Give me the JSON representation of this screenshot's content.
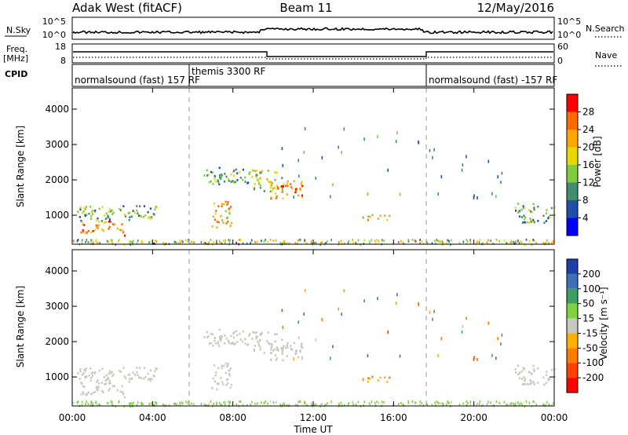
{
  "header": {
    "radar": "Adak West (fitACF)",
    "beam": "Beam 11",
    "date": "12/May/2016"
  },
  "strips": {
    "nsky_label": "N.Sky",
    "nsky_ticks": [
      "10^5",
      "10^0"
    ],
    "nsearch_label": "N.Search",
    "nsearch_ticks": [
      "10^5",
      "10^0"
    ],
    "freq_label_1": "Freq.",
    "freq_label_2": "[MHz]",
    "freq_ticks": [
      "18",
      "8"
    ],
    "nave_label": "Nave",
    "nave_ticks": [
      "60",
      "0"
    ],
    "cpid_label": "CPID",
    "cpid_segments": [
      {
        "label": "normalsound (fast)  157 RF",
        "start": 0,
        "end": 6
      },
      {
        "label": "themis 3300 RF",
        "start": 6,
        "end": 18
      },
      {
        "label": "normalsound (fast)  -157 RF",
        "start": 18,
        "end": 24
      }
    ]
  },
  "chart_data": [
    {
      "type": "heatmap",
      "parameter": "power",
      "ylabel": "Slant Range [km]",
      "ylim": [
        180,
        4600
      ],
      "yticks": [
        1000,
        2000,
        3000,
        4000
      ],
      "colorbar_label": "Power [dB]",
      "colorbar_ticks": [
        "28",
        "24",
        "20",
        "16",
        "12",
        "8",
        "4"
      ],
      "colorbar_colors": [
        "#ff0000",
        "#ff6a00",
        "#ffa500",
        "#e6d800",
        "#7fcc3f",
        "#3f8f6f",
        "#1f4fa8",
        "#0000ff"
      ],
      "regions": [
        {
          "t": [
            0.2,
            4.2
          ],
          "r": [
            850,
            1300
          ],
          "value": 10
        },
        {
          "t": [
            0.4,
            2.6
          ],
          "r": [
            450,
            850
          ],
          "value": 22
        },
        {
          "t": [
            6.9,
            7.9
          ],
          "r": [
            650,
            1450
          ],
          "value": 20
        },
        {
          "t": [
            6.5,
            9.0
          ],
          "r": [
            1900,
            2400
          ],
          "value": 10
        },
        {
          "t": [
            8.8,
            10.5
          ],
          "r": [
            1700,
            2300
          ],
          "value": 14
        },
        {
          "t": [
            9.8,
            11.5
          ],
          "r": [
            1450,
            2000
          ],
          "value": 22
        },
        {
          "t": [
            14.3,
            15.8
          ],
          "r": [
            880,
            1060
          ],
          "value": 16
        },
        {
          "t": [
            22.0,
            24.0
          ],
          "r": [
            800,
            1350
          ],
          "value": 10
        }
      ]
    },
    {
      "type": "heatmap",
      "parameter": "velocity",
      "ylabel": "Slant Range [km]",
      "ylim": [
        180,
        4600
      ],
      "yticks": [
        1000,
        2000,
        3000,
        4000
      ],
      "colorbar_label": "Velocity [m s⁻¹]",
      "colorbar_ticks": [
        "200",
        "100",
        "50",
        "15",
        "-15",
        "-50",
        "-100",
        "-200"
      ],
      "colorbar_colors": [
        "#1f3fa8",
        "#3f6fb8",
        "#3f9f5f",
        "#7fd23f",
        "#c8c8c0",
        "#ffb000",
        "#ff7a00",
        "#ff4000",
        "#ff0000"
      ],
      "regions": [
        {
          "t": [
            0.2,
            4.2
          ],
          "r": [
            850,
            1300
          ],
          "value": 0
        },
        {
          "t": [
            0.4,
            2.6
          ],
          "r": [
            450,
            850
          ],
          "value": 0
        },
        {
          "t": [
            6.9,
            7.9
          ],
          "r": [
            650,
            1450
          ],
          "value": 0
        },
        {
          "t": [
            6.5,
            9.0
          ],
          "r": [
            1900,
            2400
          ],
          "value": 0
        },
        {
          "t": [
            8.8,
            10.5
          ],
          "r": [
            1700,
            2300
          ],
          "value": 0
        },
        {
          "t": [
            9.8,
            11.5
          ],
          "r": [
            1450,
            2000
          ],
          "value": 0
        },
        {
          "t": [
            14.3,
            15.8
          ],
          "r": [
            880,
            1060
          ],
          "value": -30
        },
        {
          "t": [
            22.0,
            24.0
          ],
          "r": [
            800,
            1350
          ],
          "value": 0
        }
      ]
    }
  ],
  "xaxis": {
    "label": "Time UT",
    "range": [
      0,
      24
    ],
    "ticks": [
      "00:00",
      "04:00",
      "08:00",
      "12:00",
      "16:00",
      "20:00",
      "00:00"
    ]
  }
}
